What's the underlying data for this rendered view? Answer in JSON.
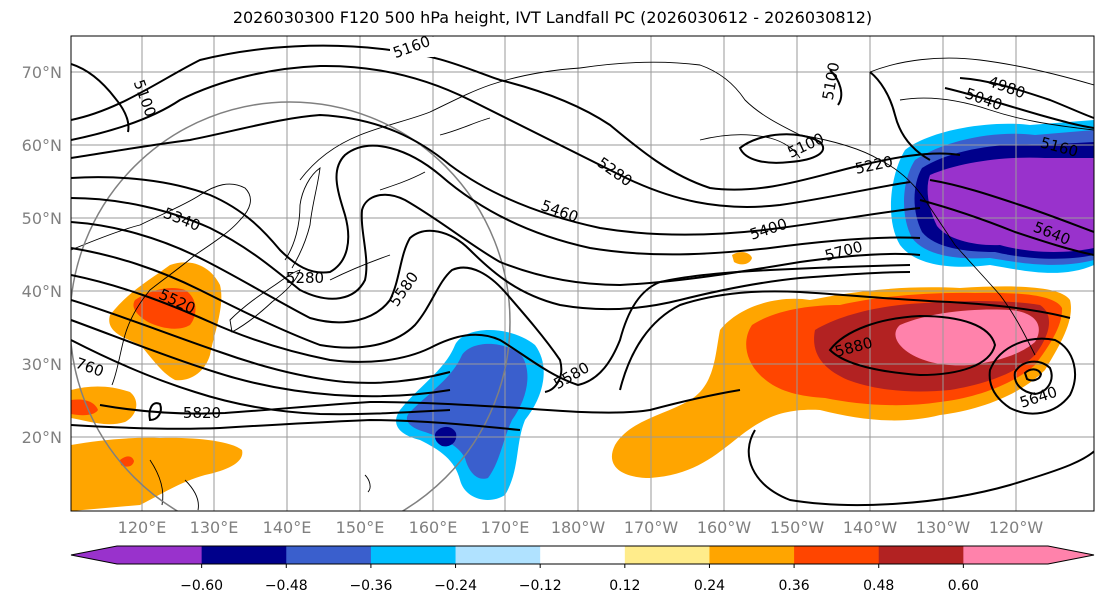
{
  "title": "2026030300 F120 500 hPa height, IVT Landfall PC (2026030612 - 2026030812)",
  "lat_labels": [
    "70°N",
    "60°N",
    "50°N",
    "40°N",
    "30°N",
    "20°N"
  ],
  "lon_labels": [
    "120°E",
    "130°E",
    "140°E",
    "150°E",
    "160°E",
    "170°E",
    "180°W",
    "170°W",
    "160°W",
    "150°W",
    "140°W",
    "130°W",
    "120°W"
  ],
  "contour_labels": [
    "5160",
    "5100",
    "5100",
    "4980",
    "5040",
    "5160",
    "5100",
    "5220",
    "5280",
    "5460",
    "5340",
    "5400",
    "5640",
    "5700",
    "5580",
    "5580",
    "5520",
    "5280",
    "5880",
    "5640",
    "5820",
    "760"
  ],
  "colorbar": {
    "tick_labels": [
      "−0.60",
      "−0.48",
      "−0.36",
      "−0.24",
      "−0.12",
      "0.12",
      "0.24",
      "0.36",
      "0.48",
      "0.60"
    ],
    "colors": [
      "#9932CC",
      "#00008B",
      "#3A5FCD",
      "#00BFFF",
      "#B0E2FF",
      "#FFFFFF",
      "#FFEC8B",
      "#FFA500",
      "#FF4500",
      "#B22222",
      "#FF82AB"
    ],
    "low_color": "#9932CC",
    "high_color": "#FF82AB"
  },
  "colors": {
    "grid": "#9a9a9a",
    "contour": "#000000",
    "circle": "#808080"
  }
}
